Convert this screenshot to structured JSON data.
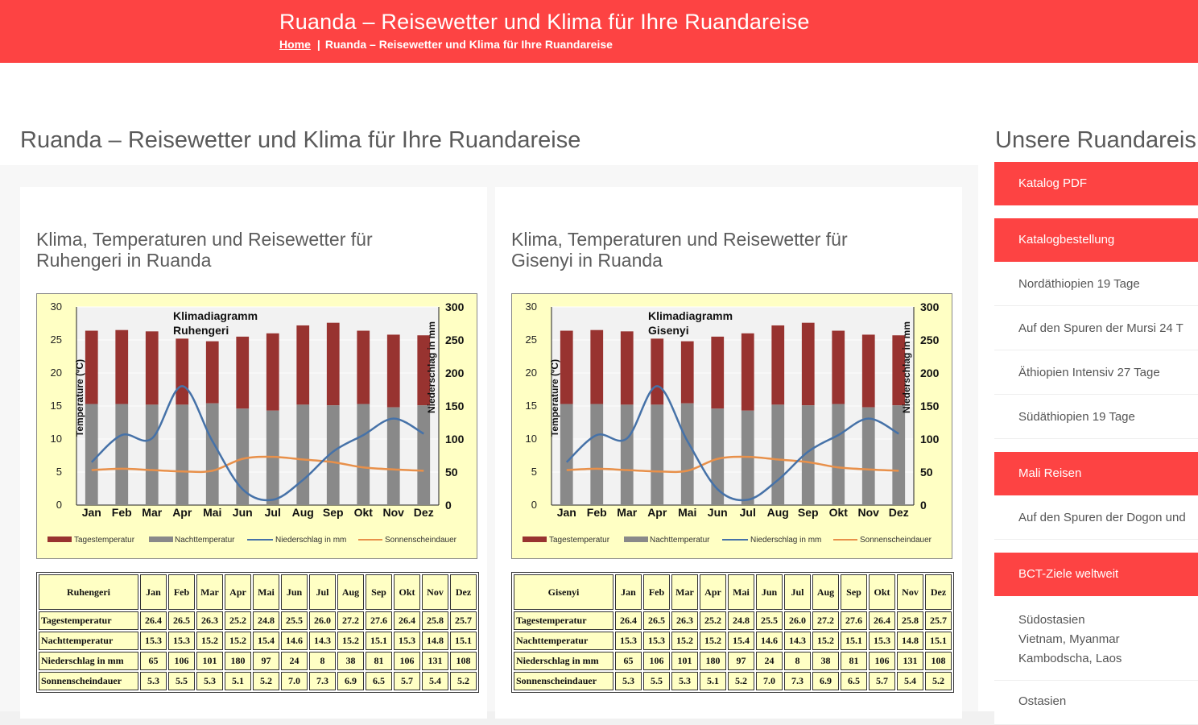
{
  "header": {
    "title": "Ruanda – Reisewetter und Klima für Ihre Ruandareise",
    "breadcrumb_home": "Home",
    "breadcrumb_sep": "|",
    "breadcrumb_current": "Ruanda – Reisewetter und Klima für Ihre Ruandareise"
  },
  "page_title": "Ruanda – Reisewetter und Klima für Ihre Ruandareise",
  "cards": [
    {
      "title": "Klima, Temperaturen und Reisewetter für Ruhengeri in Ruanda"
    },
    {
      "title": "Klima, Temperaturen und Reisewetter für Gisenyi in Ruanda"
    }
  ],
  "sidebar": {
    "title": "Unsere Ruandareis",
    "items": [
      {
        "label": "Katalog PDF"
      },
      {
        "label": "Katalogbestellung"
      },
      {
        "label": "Nordäthiopien 19   Tage"
      },
      {
        "label": "Auf den Spuren der Mursi 24   T"
      },
      {
        "label": "Äthiopien Intensiv 27   Tage"
      },
      {
        "label": "Südäthiopien 19   Tage"
      },
      {
        "label": "Mali Reisen"
      },
      {
        "label": "Auf den Spuren der Dogon und"
      },
      {
        "label": "BCT-Ziele weltweit"
      },
      {
        "label": "Südostasien"
      },
      {
        "label": "Vietnam, Myanmar"
      },
      {
        "label": "Kambodscha, Laos"
      },
      {
        "label": "Ostasien"
      }
    ]
  },
  "colors": {
    "accent": "#fd4343",
    "chart_bg": "#ffffc4",
    "plot_bg": "#f2f2f2",
    "day_temp": "#983330",
    "night_temp": "#898989",
    "precip": "#4672a8",
    "sunshine": "#e8904a"
  },
  "chart_data": [
    {
      "type": "bar",
      "title": "Klimadiagramm",
      "subtitle": "Ruhengeri",
      "ylabel": "Temperature (ºC)",
      "y2label": "Niederschlag in mm",
      "ylim": [
        0,
        30
      ],
      "y2lim": [
        0,
        300
      ],
      "yticks": [
        "0",
        "5",
        "10",
        "15",
        "20",
        "25",
        "30"
      ],
      "y2ticks": [
        "0",
        "50",
        "100",
        "150",
        "200",
        "250",
        "300"
      ],
      "categories": [
        "Jan",
        "Feb",
        "Mar",
        "Apr",
        "Mai",
        "Jun",
        "Jul",
        "Aug",
        "Sep",
        "Okt",
        "Nov",
        "Dez"
      ],
      "series": [
        {
          "name": "Tagestemperatur",
          "values": [
            26.4,
            26.5,
            26.3,
            25.2,
            24.8,
            25.5,
            26.0,
            27.2,
            27.6,
            26.4,
            25.8,
            25.7
          ]
        },
        {
          "name": "Nachttemperatur",
          "values": [
            15.3,
            15.3,
            15.2,
            15.2,
            15.4,
            14.6,
            14.3,
            15.2,
            15.1,
            15.3,
            14.8,
            15.1
          ]
        },
        {
          "name": "Niederschlag in mm",
          "values": [
            65,
            106,
            101,
            180,
            97,
            24,
            8,
            38,
            81,
            106,
            131,
            108
          ]
        },
        {
          "name": "Sonnenscheindauer",
          "values": [
            5.3,
            5.5,
            5.3,
            5.1,
            5.2,
            7.0,
            7.3,
            6.9,
            6.5,
            5.7,
            5.4,
            5.2
          ]
        }
      ],
      "table": {
        "corner": "Ruhengeri",
        "months": [
          "Jan",
          "Feb",
          "Mar",
          "Apr",
          "Mai",
          "Jun",
          "Jul",
          "Aug",
          "Sep",
          "Okt",
          "Nov",
          "Dez"
        ],
        "rows": [
          {
            "label": "Tagestemperatur",
            "values": [
              "26.4",
              "26.5",
              "26.3",
              "25.2",
              "24.8",
              "25.5",
              "26.0",
              "27.2",
              "27.6",
              "26.4",
              "25.8",
              "25.7"
            ]
          },
          {
            "label": "Nachttemperatur",
            "values": [
              "15.3",
              "15.3",
              "15.2",
              "15.2",
              "15.4",
              "14.6",
              "14.3",
              "15.2",
              "15.1",
              "15.3",
              "14.8",
              "15.1"
            ]
          },
          {
            "label": "Niederschlag in mm",
            "values": [
              "65",
              "106",
              "101",
              "180",
              "97",
              "24",
              "8",
              "38",
              "81",
              "106",
              "131",
              "108"
            ]
          },
          {
            "label": "Sonnenscheindauer",
            "values": [
              "5.3",
              "5.5",
              "5.3",
              "5.1",
              "5.2",
              "7.0",
              "7.3",
              "6.9",
              "6.5",
              "5.7",
              "5.4",
              "5.2"
            ]
          }
        ]
      }
    },
    {
      "type": "bar",
      "title": "Klimadiagramm",
      "subtitle": "Gisenyi",
      "ylabel": "Temperature (ºC)",
      "y2label": "Niederschlag in mm",
      "ylim": [
        0,
        30
      ],
      "y2lim": [
        0,
        300
      ],
      "yticks": [
        "0",
        "5",
        "10",
        "15",
        "20",
        "25",
        "30"
      ],
      "y2ticks": [
        "0",
        "50",
        "100",
        "150",
        "200",
        "250",
        "300"
      ],
      "categories": [
        "Jan",
        "Feb",
        "Mar",
        "Apr",
        "Mai",
        "Jun",
        "Jul",
        "Aug",
        "Sep",
        "Okt",
        "Nov",
        "Dez"
      ],
      "series": [
        {
          "name": "Tagestemperatur",
          "values": [
            26.4,
            26.5,
            26.3,
            25.2,
            24.8,
            25.5,
            26.0,
            27.2,
            27.6,
            26.4,
            25.8,
            25.7
          ]
        },
        {
          "name": "Nachttemperatur",
          "values": [
            15.3,
            15.3,
            15.2,
            15.2,
            15.4,
            14.6,
            14.3,
            15.2,
            15.1,
            15.3,
            14.8,
            15.1
          ]
        },
        {
          "name": "Niederschlag in mm",
          "values": [
            65,
            106,
            101,
            180,
            97,
            24,
            8,
            38,
            81,
            106,
            131,
            108
          ]
        },
        {
          "name": "Sonnenscheindauer",
          "values": [
            5.3,
            5.5,
            5.3,
            5.1,
            5.2,
            7.0,
            7.3,
            6.9,
            6.5,
            5.7,
            5.4,
            5.2
          ]
        }
      ],
      "table": {
        "corner": "Gisenyi",
        "months": [
          "Jan",
          "Feb",
          "Mar",
          "Apr",
          "Mai",
          "Jun",
          "Jul",
          "Aug",
          "Sep",
          "Okt",
          "Nov",
          "Dez"
        ],
        "rows": [
          {
            "label": "Tagestemperatur",
            "values": [
              "26.4",
              "26.5",
              "26.3",
              "25.2",
              "24.8",
              "25.5",
              "26.0",
              "27.2",
              "27.6",
              "26.4",
              "25.8",
              "25.7"
            ]
          },
          {
            "label": "Nachttemperatur",
            "values": [
              "15.3",
              "15.3",
              "15.2",
              "15.2",
              "15.4",
              "14.6",
              "14.3",
              "15.2",
              "15.1",
              "15.3",
              "14.8",
              "15.1"
            ]
          },
          {
            "label": "Niederschlag in mm",
            "values": [
              "65",
              "106",
              "101",
              "180",
              "97",
              "24",
              "8",
              "38",
              "81",
              "106",
              "131",
              "108"
            ]
          },
          {
            "label": "Sonnenscheindauer",
            "values": [
              "5.3",
              "5.5",
              "5.3",
              "5.1",
              "5.2",
              "7.0",
              "7.3",
              "6.9",
              "6.5",
              "5.7",
              "5.4",
              "5.2"
            ]
          }
        ]
      }
    }
  ]
}
